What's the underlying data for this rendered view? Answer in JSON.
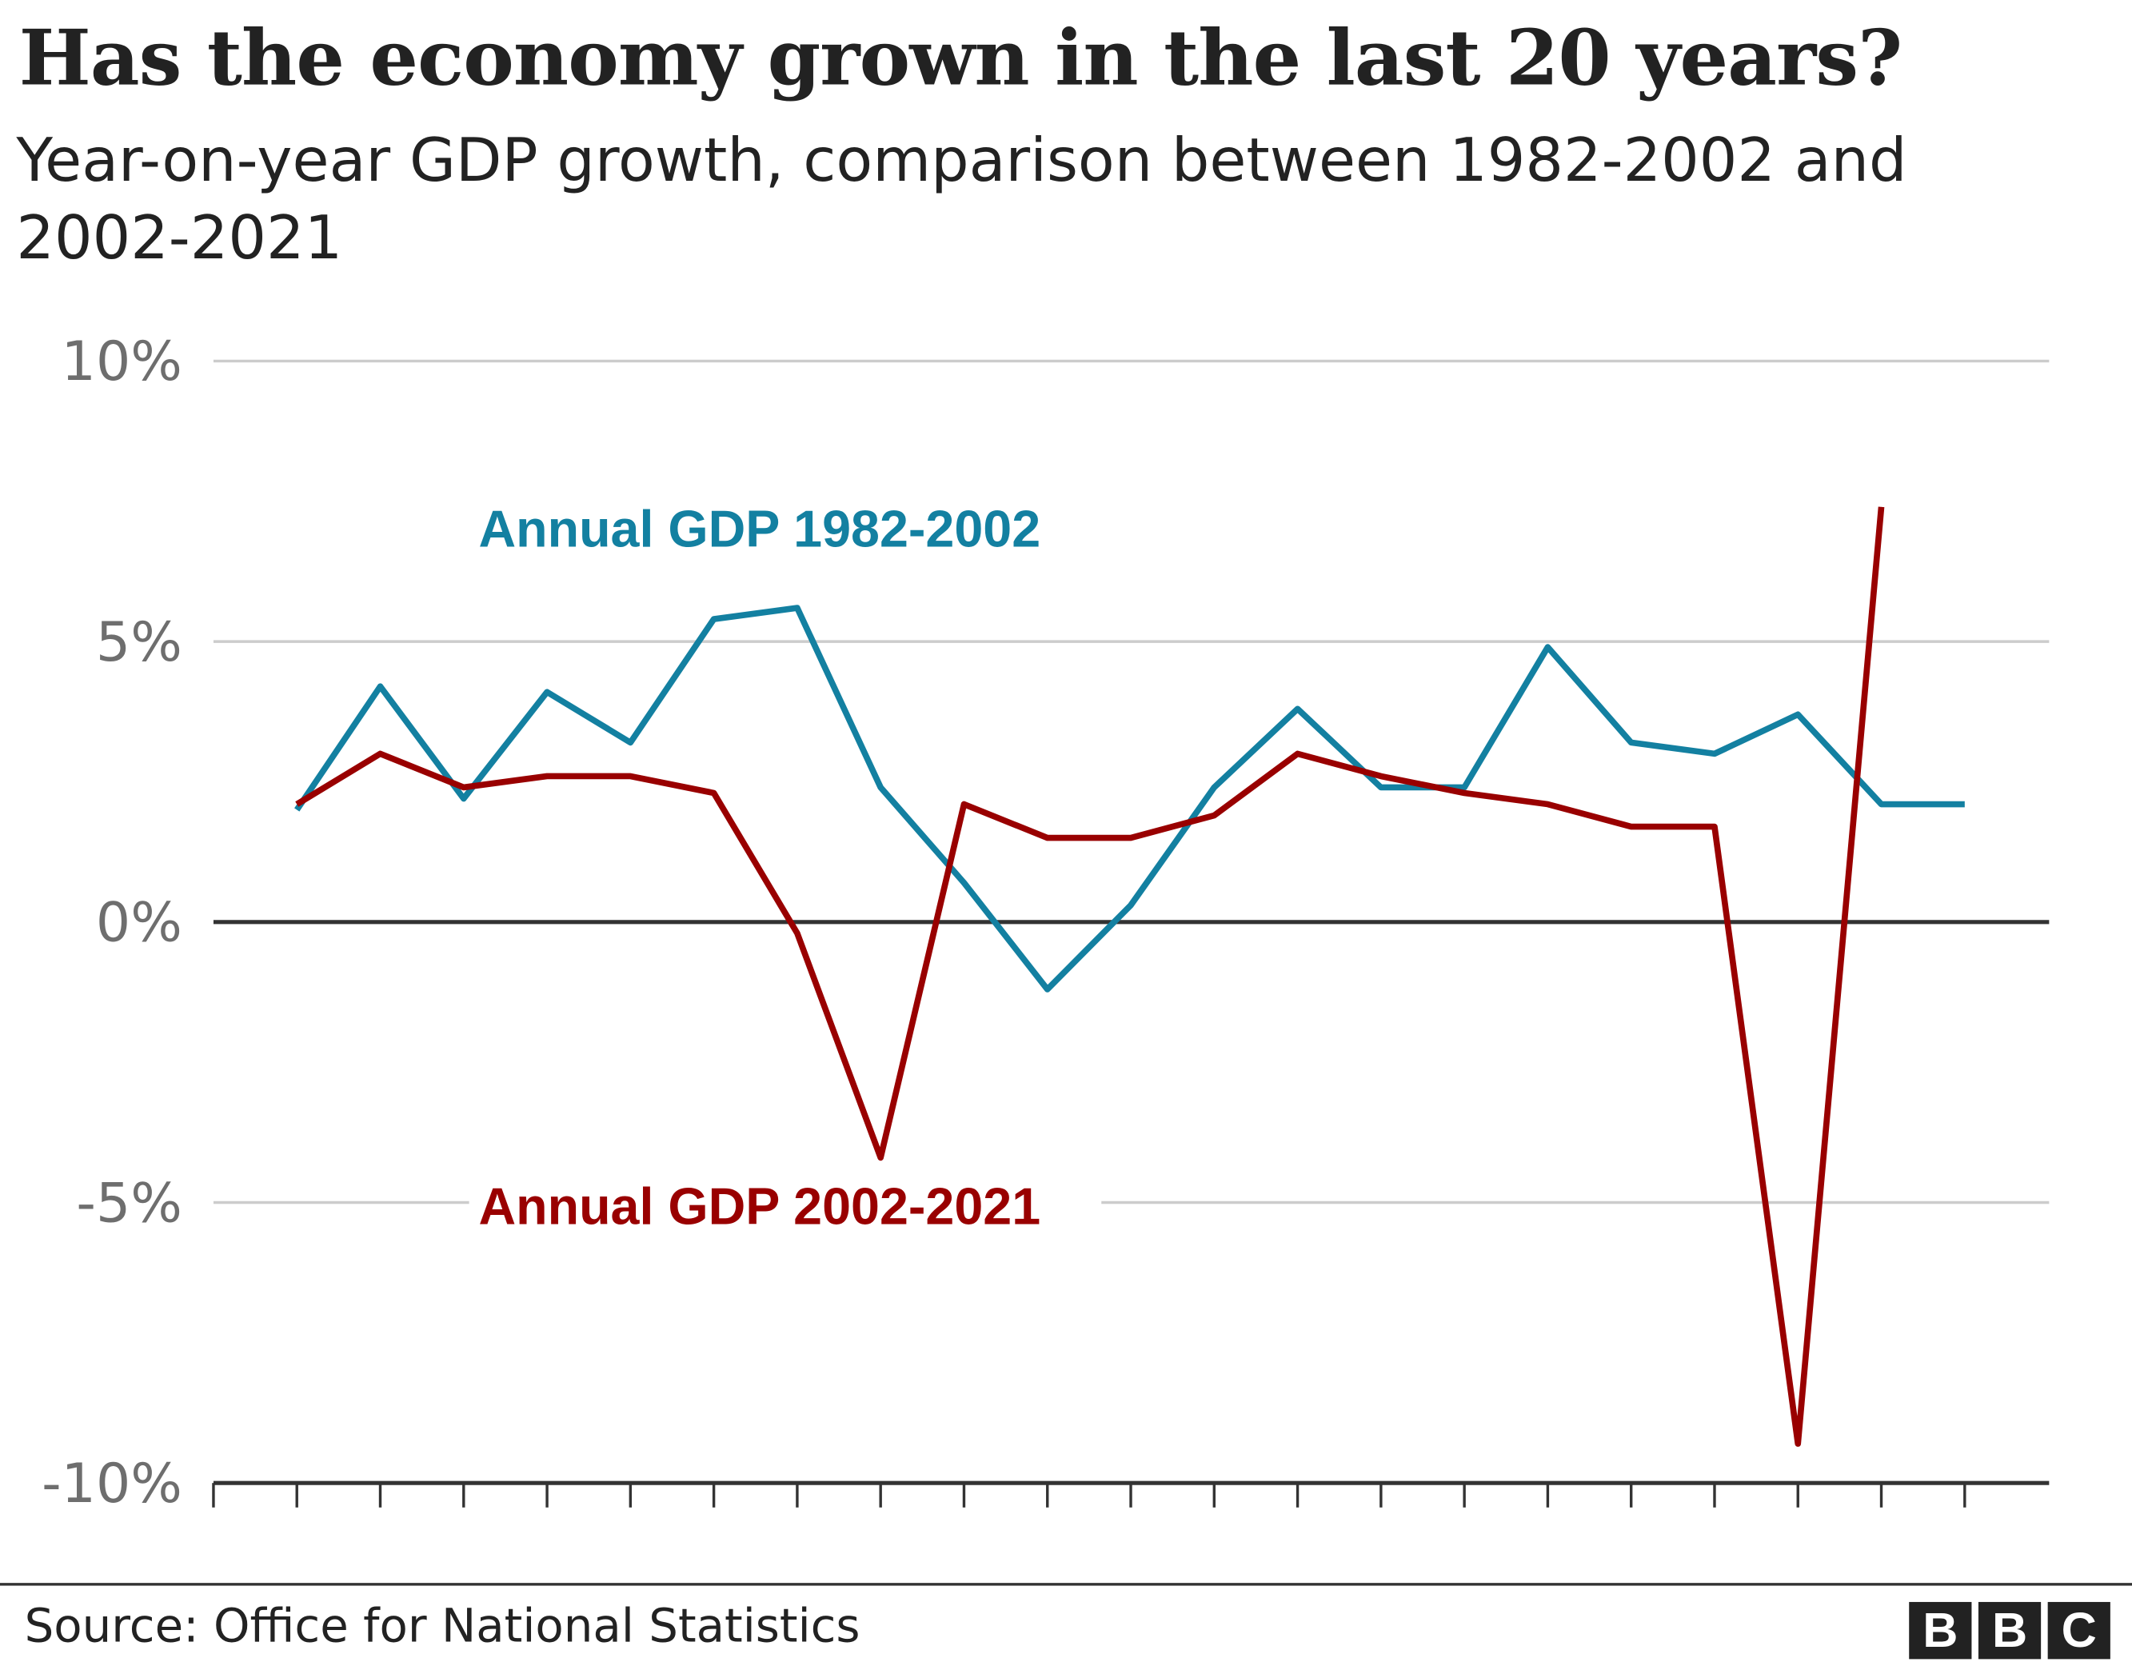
{
  "chart_data": {
    "type": "line",
    "title": "Has the economy grown in the last 20 years?",
    "subtitle": "Year-on-year GDP growth, comparison between 1982-2002 and 2002-2021",
    "xlabel": "",
    "ylabel": "",
    "ylim": [
      -10,
      10
    ],
    "yticks": [
      10,
      5,
      0,
      -5,
      -10
    ],
    "ytick_labels": [
      "10%",
      "5%",
      "0%",
      "-5%",
      "-10%"
    ],
    "x_ticks_count": 22,
    "grid": true,
    "series": [
      {
        "name": "Annual GDP 1982-2002",
        "color": "#1380A1",
        "values": [
          2.0,
          4.2,
          2.2,
          4.1,
          3.2,
          5.4,
          5.6,
          2.4,
          0.7,
          -1.2,
          0.3,
          2.4,
          3.8,
          2.4,
          2.4,
          4.9,
          3.2,
          3.0,
          3.7,
          2.1,
          2.1
        ]
      },
      {
        "name": "Annual GDP 2002-2021",
        "color": "#990000",
        "values": [
          2.1,
          3.0,
          2.4,
          2.6,
          2.6,
          2.3,
          -0.2,
          -4.2,
          2.1,
          1.5,
          1.5,
          1.9,
          3.0,
          2.6,
          2.3,
          2.1,
          1.7,
          1.7,
          -9.3,
          7.4
        ]
      }
    ]
  },
  "footer": {
    "source": "Source: Office for National Statistics",
    "logo": [
      "B",
      "B",
      "C"
    ]
  }
}
